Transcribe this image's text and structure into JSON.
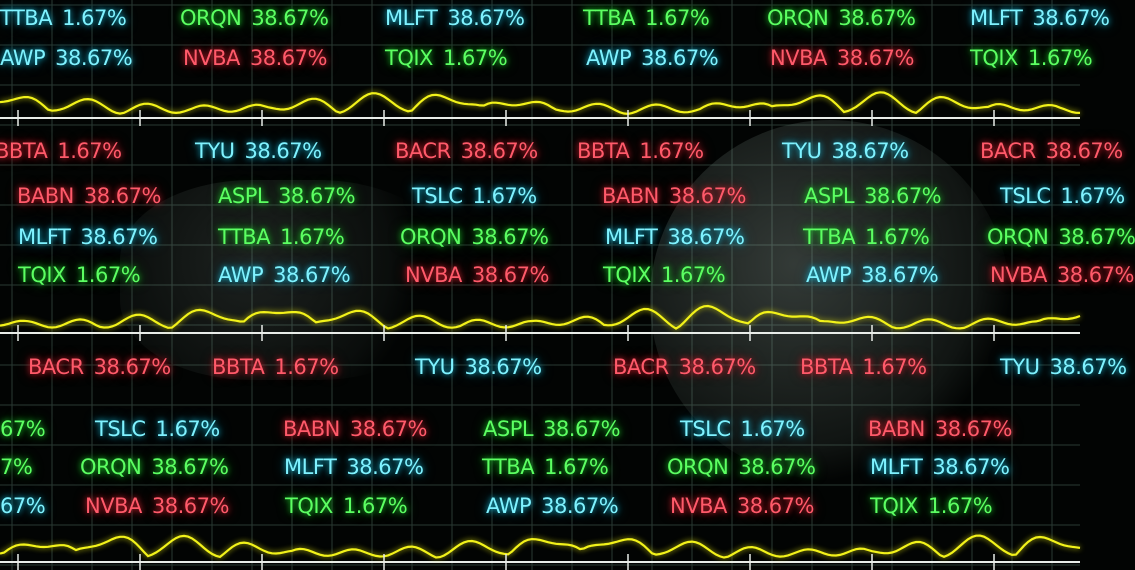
{
  "colors": {
    "green": "#5cff62",
    "cyan": "#7ff2ff",
    "red": "#ff5a6a",
    "wave": "#f2f21a",
    "grid": "#2a3a33"
  },
  "ticker_rows": [
    [
      {
        "ticker": "TTBA",
        "value": "1.67%",
        "color": "cyan"
      },
      {
        "ticker": "ORQN",
        "value": "38.67%",
        "color": "green"
      },
      {
        "ticker": "MLFT",
        "value": "38.67%",
        "color": "cyan"
      },
      {
        "ticker": "TTBA",
        "value": "1.67%",
        "color": "green"
      },
      {
        "ticker": "ORQN",
        "value": "38.67%",
        "color": "green"
      },
      {
        "ticker": "MLFT",
        "value": "38.67%",
        "color": "cyan"
      }
    ],
    [
      {
        "ticker": "AWP",
        "value": "38.67%",
        "color": "cyan"
      },
      {
        "ticker": "NVBA",
        "value": "38.67%",
        "color": "red"
      },
      {
        "ticker": "TQIX",
        "value": "1.67%",
        "color": "green"
      },
      {
        "ticker": "AWP",
        "value": "38.67%",
        "color": "cyan"
      },
      {
        "ticker": "NVBA",
        "value": "38.67%",
        "color": "red"
      },
      {
        "ticker": "TQIX",
        "value": "1.67%",
        "color": "green"
      }
    ],
    [
      {
        "ticker": "BBTA",
        "value": "1.67%",
        "color": "red"
      },
      {
        "ticker": "TYU",
        "value": "38.67%",
        "color": "cyan"
      },
      {
        "ticker": "BACR",
        "value": "38.67%",
        "color": "red"
      },
      {
        "ticker": "BBTA",
        "value": "1.67%",
        "color": "red"
      },
      {
        "ticker": "TYU",
        "value": "38.67%",
        "color": "cyan"
      },
      {
        "ticker": "BACR",
        "value": "38.67%",
        "color": "red"
      }
    ],
    [
      {
        "ticker": "BABN",
        "value": "38.67%",
        "color": "red"
      },
      {
        "ticker": "ASPL",
        "value": "38.67%",
        "color": "green"
      },
      {
        "ticker": "TSLC",
        "value": "1.67%",
        "color": "cyan"
      },
      {
        "ticker": "BABN",
        "value": "38.67%",
        "color": "red"
      },
      {
        "ticker": "ASPL",
        "value": "38.67%",
        "color": "green"
      },
      {
        "ticker": "TSLC",
        "value": "1.67%",
        "color": "cyan"
      }
    ],
    [
      {
        "ticker": "MLFT",
        "value": "38.67%",
        "color": "cyan"
      },
      {
        "ticker": "TTBA",
        "value": "1.67%",
        "color": "green"
      },
      {
        "ticker": "ORQN",
        "value": "38.67%",
        "color": "green"
      },
      {
        "ticker": "MLFT",
        "value": "38.67%",
        "color": "cyan"
      },
      {
        "ticker": "TTBA",
        "value": "1.67%",
        "color": "green"
      },
      {
        "ticker": "ORQN",
        "value": "38.67%",
        "color": "green"
      }
    ],
    [
      {
        "ticker": "TQIX",
        "value": "1.67%",
        "color": "green"
      },
      {
        "ticker": "AWP",
        "value": "38.67%",
        "color": "cyan"
      },
      {
        "ticker": "NVBA",
        "value": "38.67%",
        "color": "red"
      },
      {
        "ticker": "TQIX",
        "value": "1.67%",
        "color": "green"
      },
      {
        "ticker": "AWP",
        "value": "38.67%",
        "color": "cyan"
      },
      {
        "ticker": "NVBA",
        "value": "38.67%",
        "color": "red"
      }
    ],
    [
      {
        "ticker": "BACR",
        "value": "38.67%",
        "color": "red"
      },
      {
        "ticker": "BBTA",
        "value": "1.67%",
        "color": "red"
      },
      {
        "ticker": "TYU",
        "value": "38.67%",
        "color": "cyan"
      },
      {
        "ticker": "BACR",
        "value": "38.67%",
        "color": "red"
      },
      {
        "ticker": "BBTA",
        "value": "1.67%",
        "color": "red"
      },
      {
        "ticker": "TYU",
        "value": "38.67%",
        "color": "cyan"
      }
    ],
    [
      {
        "ticker": "",
        "value": "67%",
        "color": "green"
      },
      {
        "ticker": "TSLC",
        "value": "1.67%",
        "color": "cyan"
      },
      {
        "ticker": "BABN",
        "value": "38.67%",
        "color": "red"
      },
      {
        "ticker": "ASPL",
        "value": "38.67%",
        "color": "green"
      },
      {
        "ticker": "TSLC",
        "value": "1.67%",
        "color": "cyan"
      },
      {
        "ticker": "BABN",
        "value": "38.67%",
        "color": "red"
      }
    ],
    [
      {
        "ticker": "",
        "value": "7%",
        "color": "green"
      },
      {
        "ticker": "ORQN",
        "value": "38.67%",
        "color": "green"
      },
      {
        "ticker": "MLFT",
        "value": "38.67%",
        "color": "cyan"
      },
      {
        "ticker": "TTBA",
        "value": "1.67%",
        "color": "green"
      },
      {
        "ticker": "ORQN",
        "value": "38.67%",
        "color": "green"
      },
      {
        "ticker": "MLFT",
        "value": "38.67%",
        "color": "cyan"
      }
    ],
    [
      {
        "ticker": "",
        "value": "67%",
        "color": "cyan"
      },
      {
        "ticker": "NVBA",
        "value": "38.67%",
        "color": "red"
      },
      {
        "ticker": "TQIX",
        "value": "1.67%",
        "color": "green"
      },
      {
        "ticker": "AWP",
        "value": "38.67%",
        "color": "cyan"
      },
      {
        "ticker": "NVBA",
        "value": "38.67%",
        "color": "red"
      },
      {
        "ticker": "TQIX",
        "value": "1.67%",
        "color": "green"
      }
    ]
  ]
}
